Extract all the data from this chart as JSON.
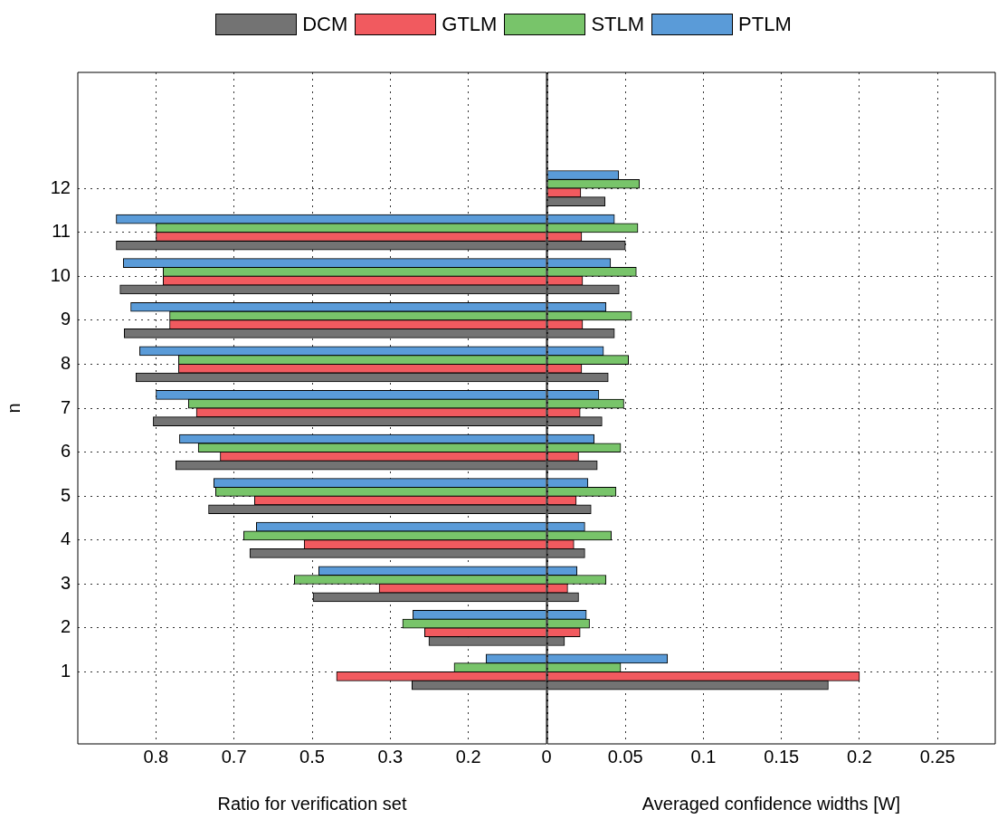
{
  "chart_data": [
    {
      "type": "bar",
      "orientation": "horizontal",
      "xlabel": "Ratio for verification set",
      "ylabel": "n",
      "legend": "top",
      "grid": true,
      "categories": [
        "12",
        "11",
        "10",
        "9",
        "8",
        "7",
        "6",
        "5",
        "4",
        "3",
        "2",
        "1"
      ],
      "xlim": [
        1,
        0
      ],
      "xticks": [
        {
          "value": 0.8333,
          "label": "0.8"
        },
        {
          "value": 0.6667,
          "label": "0.7"
        },
        0.5,
        {
          "value": 0.3333,
          "label": "0.3"
        },
        {
          "value": 0.1667,
          "label": "0.2"
        },
        0
      ],
      "series": [
        {
          "name": "DCM",
          "color": "#737373",
          "values": [
            null,
            0.918,
            0.91,
            0.901,
            0.876,
            0.839,
            0.791,
            0.721,
            0.633,
            0.498,
            0.251,
            0.287
          ]
        },
        {
          "name": "GTLM",
          "color": "#f15a5f",
          "values": [
            null,
            0.833,
            0.818,
            0.804,
            0.785,
            0.747,
            0.696,
            0.623,
            0.517,
            0.357,
            0.26,
            0.448
          ]
        },
        {
          "name": "STLM",
          "color": "#78c46a",
          "values": [
            null,
            0.833,
            0.818,
            0.804,
            0.785,
            0.764,
            0.743,
            0.706,
            0.646,
            0.538,
            0.307,
            0.197
          ]
        },
        {
          "name": "PTLM",
          "color": "#5a9bd8",
          "values": [
            null,
            0.918,
            0.903,
            0.887,
            0.868,
            0.833,
            0.783,
            0.71,
            0.619,
            0.486,
            0.285,
            0.129
          ]
        }
      ]
    },
    {
      "type": "bar",
      "orientation": "horizontal",
      "xlabel": "Averaged confidence widths [W]",
      "grid": true,
      "tick_labels": "x",
      "categories": [
        "12",
        "11",
        "10",
        "9",
        "8",
        "7",
        "6",
        "5",
        "4",
        "3",
        "2",
        "1"
      ],
      "xlim": [
        0,
        0.287
      ],
      "xticks": [
        {
          "value": 0,
          "label": null
        },
        0.05,
        0.1,
        0.15,
        0.2,
        0.25
      ],
      "series": [
        {
          "color": "#737373",
          "values": [
            0.037,
            0.05,
            0.046,
            0.043,
            0.039,
            0.035,
            0.032,
            0.028,
            0.024,
            0.02,
            0.011,
            0.18
          ]
        },
        {
          "color": "#f15a5f",
          "values": [
            0.0214,
            0.022,
            0.0226,
            0.0226,
            0.022,
            0.021,
            0.02,
            0.0185,
            0.017,
            0.013,
            0.021,
            0.2
          ]
        },
        {
          "color": "#78c46a",
          "values": [
            0.059,
            0.058,
            0.057,
            0.054,
            0.052,
            0.049,
            0.047,
            0.044,
            0.041,
            0.0376,
            0.027,
            0.047
          ]
        },
        {
          "color": "#5a9bd8",
          "values": [
            0.0457,
            0.043,
            0.0405,
            0.0376,
            0.036,
            0.033,
            0.03,
            0.026,
            0.024,
            0.019,
            0.025,
            0.077
          ]
        }
      ]
    }
  ]
}
